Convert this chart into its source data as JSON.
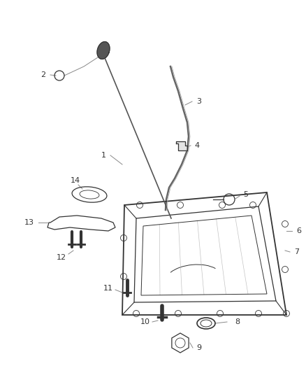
{
  "bg_color": "#ffffff",
  "line_color": "#333333",
  "label_color": "#333333",
  "leader_color": "#888888",
  "figsize": [
    4.38,
    5.33
  ],
  "dpi": 100,
  "xlim": [
    0,
    438
  ],
  "ylim": [
    0,
    533
  ]
}
